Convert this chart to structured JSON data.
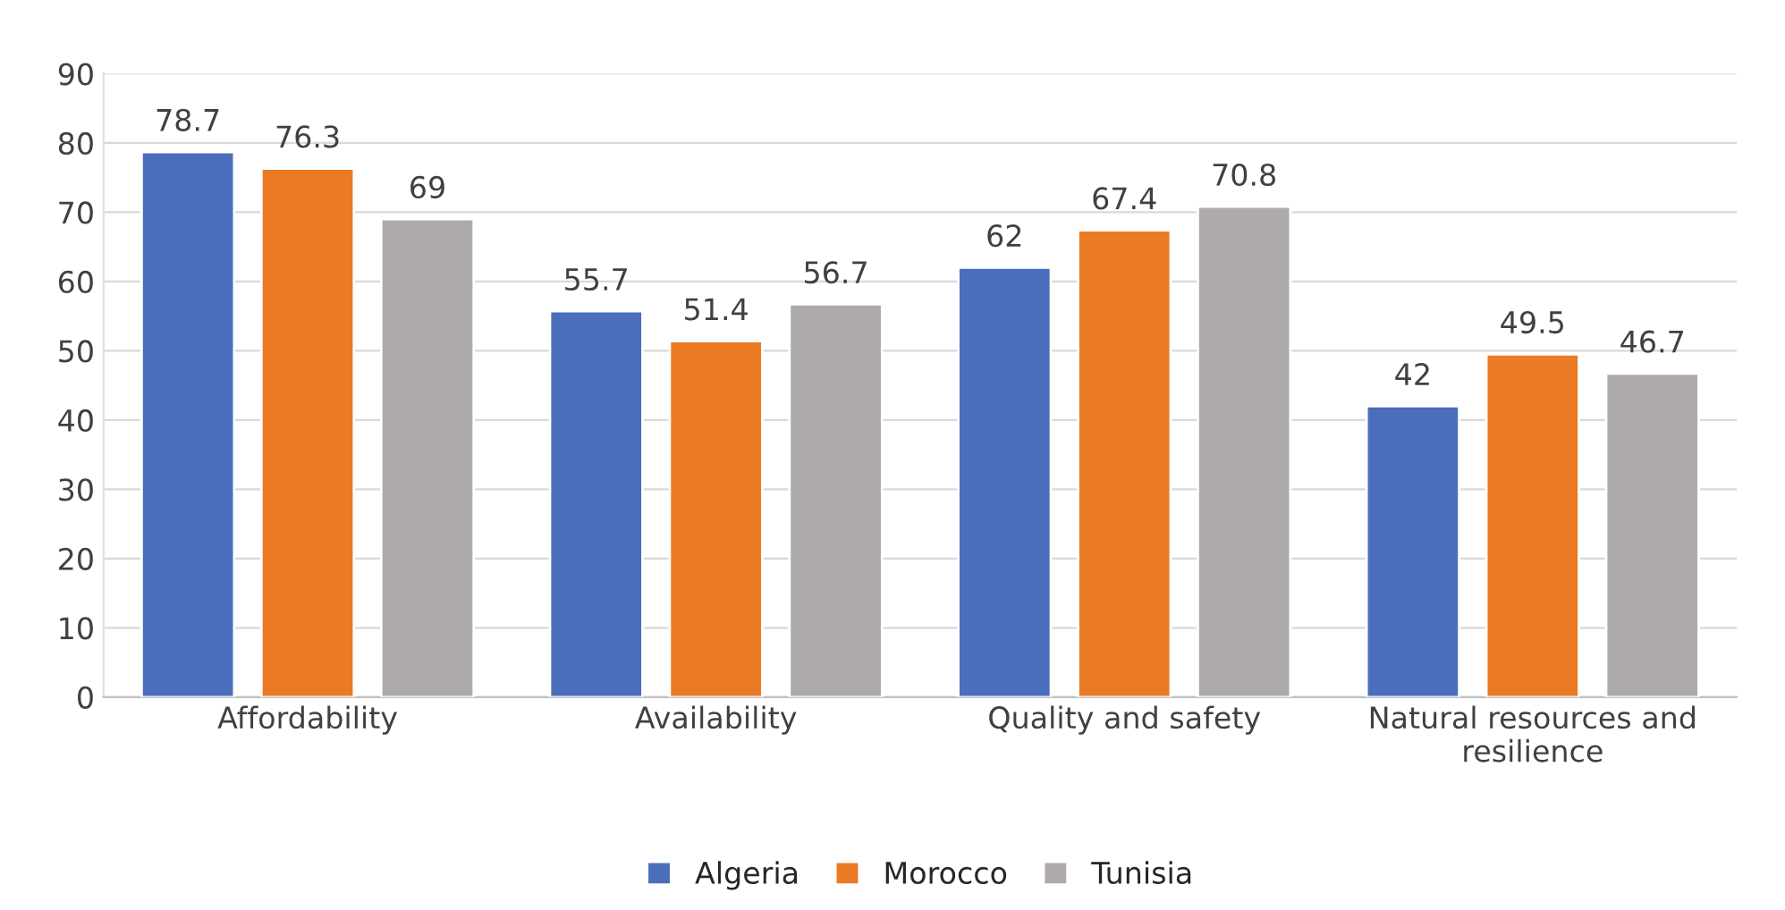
{
  "chart_data": {
    "type": "bar",
    "categories": [
      "Affordability",
      "Availability",
      "Quality and safety",
      "Natural resources and\nresilience"
    ],
    "series": [
      {
        "name": "Algeria",
        "color": "#4a6ebc",
        "values": [
          78.7,
          55.7,
          62,
          42
        ]
      },
      {
        "name": "Morocco",
        "color": "#ea7a24",
        "values": [
          76.3,
          51.4,
          67.4,
          49.5
        ]
      },
      {
        "name": "Tunisia",
        "color": "#aeaaaa",
        "values": [
          69,
          56.7,
          70.8,
          46.7
        ]
      }
    ],
    "ylim": [
      0,
      90
    ],
    "yticks": [
      0,
      10,
      20,
      30,
      40,
      50,
      60,
      70,
      80,
      90
    ],
    "grid": "y",
    "legend": "bottom",
    "data_labels": true
  }
}
